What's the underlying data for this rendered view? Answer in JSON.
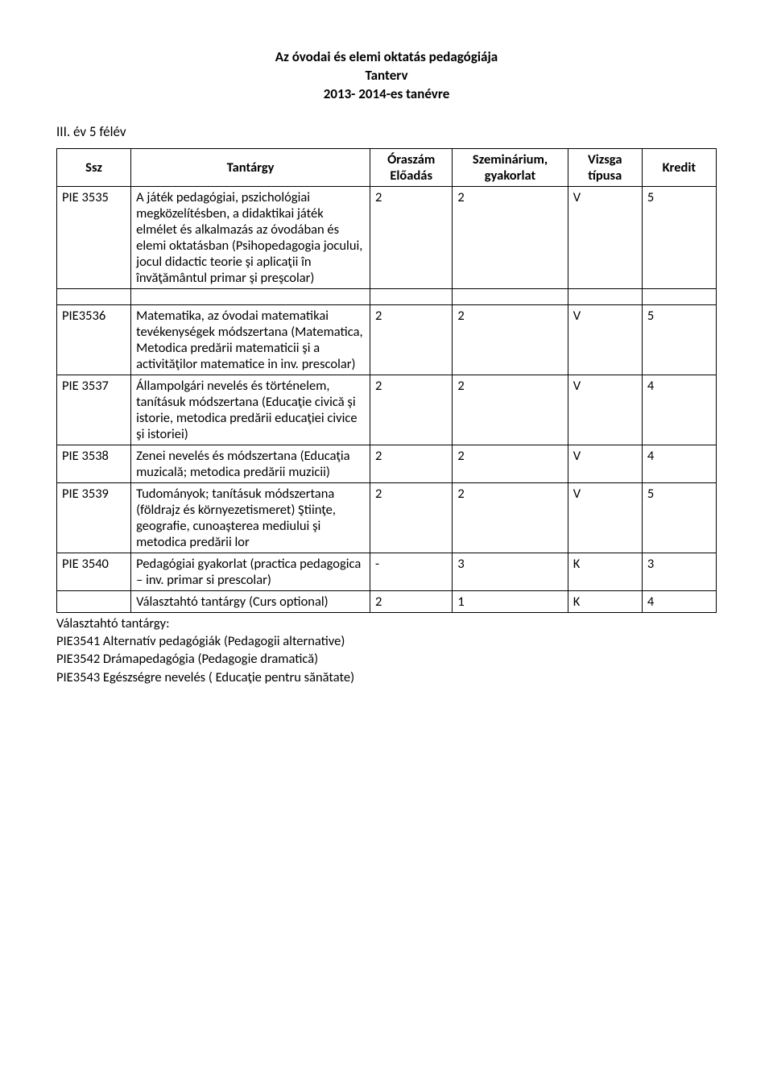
{
  "header": {
    "line1": "Az óvodai és elemi oktatás pedagógiája",
    "line2": "Tanterv",
    "line3": "2013- 2014-es tanévre"
  },
  "semester_label": "III. év 5 félév",
  "columns": {
    "ssz": "Ssz",
    "tantargy": "Tantárgy",
    "oraszam": "Óraszám",
    "eloadas": "Előadás",
    "szeminarium": "Szeminárium, gyakorlat",
    "vizsga": "Vizsga típusa",
    "kredit": "Kredit"
  },
  "rows": [
    {
      "ssz": "PIE 3535",
      "tant": "A játék pedagógiai, pszichológiai megközelítésben, a didaktikai játék elmélet és alkalmazás az óvodában és elemi oktatásban (Psihopedagogia jocului, jocul didactic teorie şi aplicaţii în învăţământul primar şi preşcolar)",
      "ora": "2",
      "szem": "2",
      "viz": "V",
      "kred": "5"
    },
    {
      "spacer": true
    },
    {
      "ssz": "PIE3536",
      "tant": "Matematika, az óvodai matematikai tevékenységek módszertana (Matematica, Metodica predării matematicii şi a activităţilor matematice in inv. prescolar)",
      "ora": "2",
      "szem": "2",
      "viz": "V",
      "kred": "5"
    },
    {
      "ssz": "PIE 3537",
      "tant": "Állampolgári nevelés és történelem, tanításuk módszertana (Educaţie civică şi istorie, metodica predării educaţiei civice şi istoriei)",
      "ora": "2",
      "szem": "2",
      "viz": "V",
      "kred": "4"
    },
    {
      "ssz": "PIE 3538",
      "tant": "Zenei nevelés és módszertana (Educaţia muzicală; metodica predării muzicii)",
      "ora": "2",
      "szem": "2",
      "viz": "V",
      "kred": "4"
    },
    {
      "ssz": "PIE 3539",
      "tant": "Tudományok; tanításuk módszertana (földrajz és környezetismeret) Ştiinţe, geografie, cunoaşterea mediului şi metodica predării lor",
      "ora": "2",
      "szem": "2",
      "viz": "V",
      "kred": "5"
    },
    {
      "ssz": "PIE 3540",
      "tant": "Pedagógiai gyakorlat (practica pedagogica – inv. primar si prescolar)",
      "ora": "-",
      "szem": "3",
      "viz": "K",
      "kred": "3"
    },
    {
      "ssz": "",
      "tant": "Választahtó tantárgy (Curs optional)",
      "ora": "2",
      "szem": "1",
      "viz": "K",
      "kred": "4"
    }
  ],
  "footer": {
    "line1": "Választahtó tantárgy:",
    "line2": "PIE3541 Alternatív pedagógiák (Pedagogii alternative)",
    "line3": "PIE3542 Drámapedagógia (Pedagogie dramatică)",
    "line4": "PIE3543 Egészségre nevelés ( Educaţie pentru sănătate)"
  }
}
